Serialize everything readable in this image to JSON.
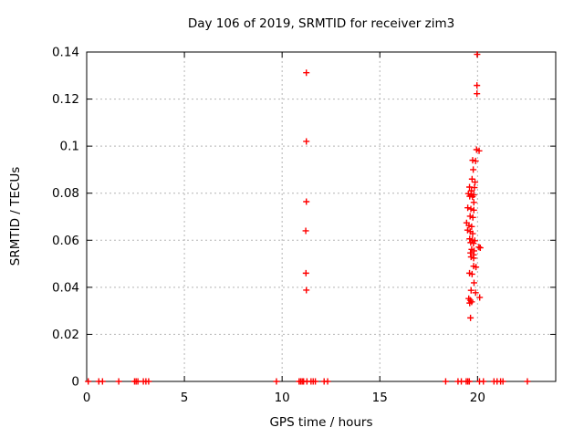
{
  "chart_data": {
    "type": "scatter",
    "title": "Day 106 of 2019, SRMTID for receiver zim3",
    "xlabel": "GPS time / hours",
    "ylabel": "SRMTID / TECUs",
    "xlim": [
      0,
      24
    ],
    "ylim": [
      0,
      0.14
    ],
    "xticks": {
      "values": [
        0,
        5,
        10,
        15,
        20
      ],
      "labels": [
        "0",
        "5",
        "10",
        "15",
        "20"
      ]
    },
    "yticks": {
      "values": [
        0,
        0.02,
        0.04,
        0.06,
        0.08,
        0.1,
        0.12,
        0.14
      ],
      "labels": [
        "0",
        "0.02",
        "0.04",
        "0.06",
        "0.08",
        "0.1",
        "0.12",
        "0.14"
      ]
    },
    "grid": true,
    "legend": "none",
    "marker": "plus",
    "marker_color": "#ff0000",
    "axis_color": "#000000",
    "grid_color": "#b4b4b4",
    "series": [
      {
        "name": "SRMTID",
        "points": [
          [
            0.08,
            0
          ],
          [
            0.62,
            0
          ],
          [
            0.81,
            0
          ],
          [
            1.64,
            0
          ],
          [
            2.45,
            0
          ],
          [
            2.53,
            0
          ],
          [
            2.62,
            0
          ],
          [
            2.9,
            0
          ],
          [
            3.03,
            0
          ],
          [
            3.17,
            0
          ],
          [
            9.71,
            0
          ],
          [
            10.87,
            0
          ],
          [
            10.95,
            0
          ],
          [
            11.03,
            0
          ],
          [
            11.1,
            0
          ],
          [
            11.27,
            0
          ],
          [
            11.48,
            0
          ],
          [
            11.59,
            0
          ],
          [
            11.7,
            0
          ],
          [
            12.15,
            0
          ],
          [
            12.33,
            0
          ],
          [
            18.37,
            0
          ],
          [
            19.0,
            0
          ],
          [
            19.17,
            0
          ],
          [
            19.42,
            0
          ],
          [
            19.5,
            0
          ],
          [
            19.58,
            0
          ],
          [
            20.1,
            0
          ],
          [
            20.3,
            0
          ],
          [
            20.84,
            0
          ],
          [
            21.0,
            0
          ],
          [
            21.18,
            0
          ],
          [
            21.3,
            0
          ],
          [
            22.55,
            0
          ],
          [
            11.24,
            0.1312
          ],
          [
            11.24,
            0.102
          ],
          [
            11.24,
            0.0764
          ],
          [
            11.21,
            0.064
          ],
          [
            11.22,
            0.046
          ],
          [
            11.24,
            0.0388
          ],
          [
            19.98,
            0.139
          ],
          [
            19.97,
            0.1258
          ],
          [
            19.97,
            0.1223
          ],
          [
            19.95,
            0.0985
          ],
          [
            20.08,
            0.098
          ],
          [
            19.75,
            0.094
          ],
          [
            19.9,
            0.0937
          ],
          [
            19.78,
            0.09
          ],
          [
            19.72,
            0.086
          ],
          [
            19.87,
            0.0847
          ],
          [
            19.59,
            0.0826
          ],
          [
            19.84,
            0.0824
          ],
          [
            19.69,
            0.081
          ],
          [
            19.53,
            0.0798
          ],
          [
            19.67,
            0.0795
          ],
          [
            19.81,
            0.0793
          ],
          [
            19.6,
            0.0787
          ],
          [
            19.74,
            0.0785
          ],
          [
            19.81,
            0.0761
          ],
          [
            19.5,
            0.0738
          ],
          [
            19.66,
            0.0733
          ],
          [
            19.81,
            0.0728
          ],
          [
            19.62,
            0.0702
          ],
          [
            19.76,
            0.0697
          ],
          [
            19.44,
            0.0674
          ],
          [
            19.56,
            0.0663
          ],
          [
            19.7,
            0.0658
          ],
          [
            19.49,
            0.0643
          ],
          [
            19.63,
            0.0637
          ],
          [
            19.75,
            0.0628
          ],
          [
            19.6,
            0.0606
          ],
          [
            19.73,
            0.0601
          ],
          [
            19.86,
            0.0598
          ],
          [
            19.65,
            0.059
          ],
          [
            19.79,
            0.0587
          ],
          [
            20.07,
            0.0571
          ],
          [
            20.14,
            0.0568
          ],
          [
            19.7,
            0.0561
          ],
          [
            19.82,
            0.0555
          ],
          [
            19.64,
            0.0546
          ],
          [
            19.8,
            0.0538
          ],
          [
            19.67,
            0.0529
          ],
          [
            19.8,
            0.0524
          ],
          [
            19.8,
            0.049
          ],
          [
            19.92,
            0.0486
          ],
          [
            19.59,
            0.046
          ],
          [
            19.72,
            0.0456
          ],
          [
            19.82,
            0.0419
          ],
          [
            19.67,
            0.0387
          ],
          [
            19.9,
            0.0377
          ],
          [
            20.11,
            0.0357
          ],
          [
            19.55,
            0.0352
          ],
          [
            19.63,
            0.0345
          ],
          [
            19.7,
            0.0338
          ],
          [
            19.6,
            0.0333
          ],
          [
            19.64,
            0.027
          ]
        ]
      }
    ]
  }
}
